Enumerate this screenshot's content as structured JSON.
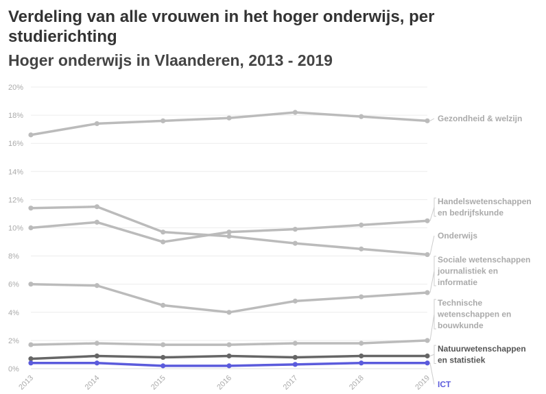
{
  "chart_data": {
    "type": "line",
    "title": "Verdeling van alle vrouwen in het hoger onderwijs, per studierichting",
    "subtitle": "Hoger onderwijs in Vlaanderen, 2013 - 2019",
    "x": [
      "2013",
      "2014",
      "2015",
      "2016",
      "2017",
      "2018",
      "2019"
    ],
    "y_ticks": [
      "0%",
      "2%",
      "4%",
      "6%",
      "8%",
      "10%",
      "12%",
      "14%",
      "16%",
      "18%",
      "20%"
    ],
    "ylim": [
      0,
      20
    ],
    "grid": true,
    "legend": "direct labels at line ends (right)",
    "series": [
      {
        "name": "Gezondheid & welzijn",
        "color": "#bbbbbb",
        "values": [
          16.6,
          17.4,
          17.6,
          17.8,
          18.2,
          17.9,
          17.6
        ]
      },
      {
        "name": "Handelswetenschappen en bedrijfskunde",
        "color": "#bbbbbb",
        "values": [
          10.0,
          10.4,
          9.0,
          9.7,
          9.9,
          10.2,
          10.5
        ]
      },
      {
        "name": "Onderwijs",
        "color": "#bbbbbb",
        "values": [
          11.4,
          11.5,
          9.7,
          9.4,
          8.9,
          8.5,
          8.1
        ]
      },
      {
        "name": "Sociale wetenschappen journalistiek en informatie",
        "color": "#bbbbbb",
        "values": [
          6.0,
          5.9,
          4.5,
          4.0,
          4.8,
          5.1,
          5.4
        ]
      },
      {
        "name": "Technische wetenschappen en bouwkunde",
        "color": "#bbbbbb",
        "values": [
          1.7,
          1.8,
          1.7,
          1.7,
          1.8,
          1.8,
          2.0
        ]
      },
      {
        "name": "Natuurwetenschappen en statistiek",
        "color": "#666666",
        "values": [
          0.7,
          0.9,
          0.8,
          0.9,
          0.8,
          0.9,
          0.9
        ]
      },
      {
        "name": "ICT",
        "color": "#5b5bdc",
        "values": [
          0.4,
          0.4,
          0.2,
          0.2,
          0.3,
          0.4,
          0.4
        ]
      }
    ],
    "labels": [
      {
        "lines": [
          "Gezondheid & welzijn"
        ],
        "color": "#aaaaaa"
      },
      {
        "lines": [
          "Handelswetenschappen",
          "en bedrijfskunde"
        ],
        "color": "#aaaaaa"
      },
      {
        "lines": [
          "Onderwijs"
        ],
        "color": "#aaaaaa"
      },
      {
        "lines": [
          "Sociale wetenschappen",
          "journalistiek en",
          "informatie"
        ],
        "color": "#aaaaaa"
      },
      {
        "lines": [
          "Technische",
          "wetenschappen en",
          "bouwkunde"
        ],
        "color": "#aaaaaa"
      },
      {
        "lines": [
          "Natuurwetenschappen",
          "en statistiek"
        ],
        "color": "#555555"
      },
      {
        "lines": [
          "ICT"
        ],
        "color": "#5b5bdc"
      }
    ]
  }
}
